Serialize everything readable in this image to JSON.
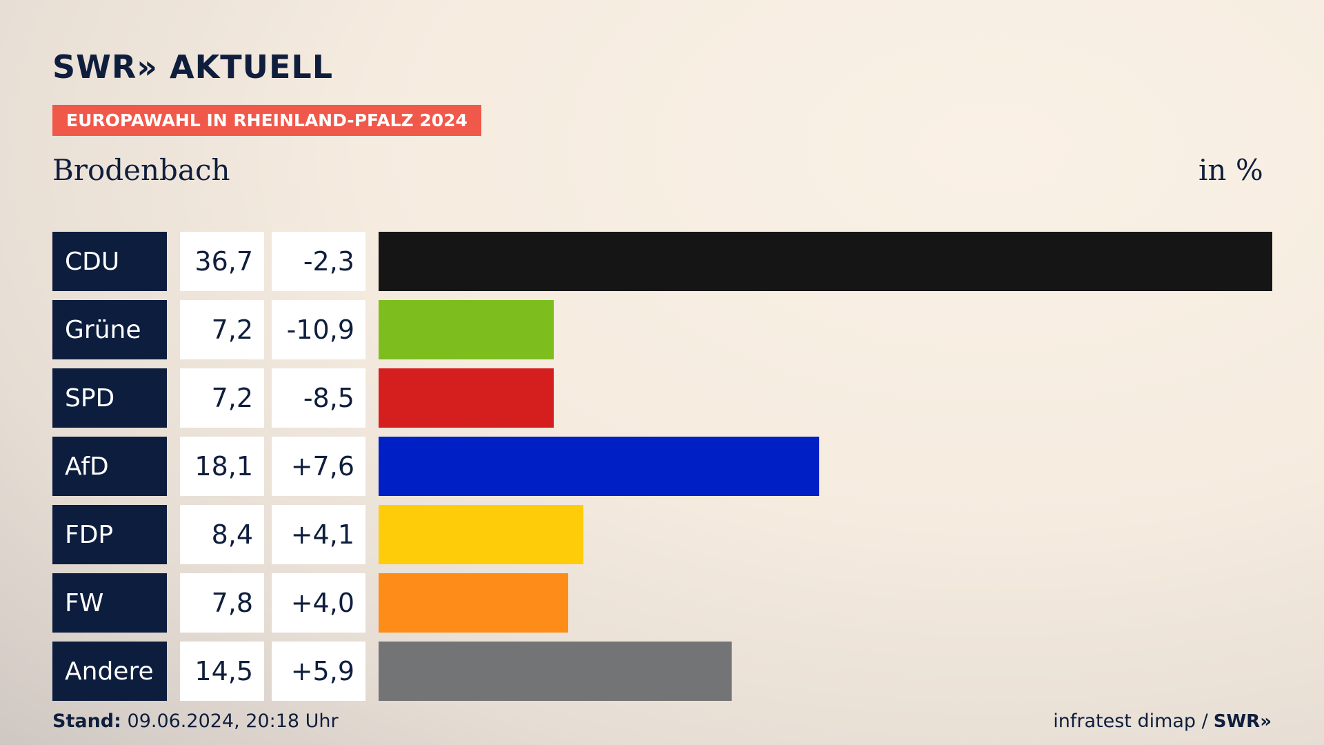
{
  "header": {
    "logo_text": "SWR» AKTUELL",
    "badge": "EUROPAWAHL IN RHEINLAND-PFALZ 2024",
    "place": "Brodenbach",
    "unit": "in %"
  },
  "chart_data": {
    "type": "bar",
    "orientation": "horizontal",
    "categories": [
      "CDU",
      "Grüne",
      "SPD",
      "AfD",
      "FDP",
      "FW",
      "Andere"
    ],
    "values": [
      36.7,
      7.2,
      7.2,
      18.1,
      8.4,
      7.8,
      14.5
    ],
    "value_labels": [
      "36,7",
      "7,2",
      "7,2",
      "18,1",
      "8,4",
      "7,8",
      "14,5"
    ],
    "change_labels": [
      "-2,3",
      "-10,9",
      "-8,5",
      "+7,6",
      "+4,1",
      "+4,0",
      "+5,9"
    ],
    "colors": [
      "#151515",
      "#7dbd1e",
      "#d51f1f",
      "#0020c6",
      "#ffcc0a",
      "#fd8c18",
      "#737475"
    ],
    "xlim": [
      0,
      36.7
    ],
    "grid": false,
    "legend": "none"
  },
  "footer": {
    "stand_label": "Stand:",
    "stand_value": "09.06.2024, 20:18 Uhr",
    "source": "infratest dimap /",
    "source_logo": "SWR»"
  }
}
